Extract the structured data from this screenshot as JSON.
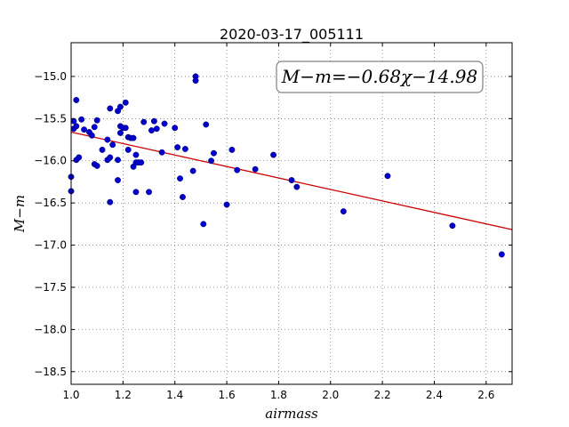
{
  "chart_data": {
    "type": "scatter",
    "title": "2020-03-17_005111",
    "xlabel": "airmass",
    "ylabel": "M−m",
    "xlim": [
      1.0,
      2.7
    ],
    "ylim": [
      -18.65,
      -14.6
    ],
    "y_inverted": true,
    "grid": true,
    "xticks": [
      1.0,
      1.2,
      1.4,
      1.6,
      1.8,
      2.0,
      2.2,
      2.4,
      2.6
    ],
    "xtick_labels": [
      "1.0",
      "1.2",
      "1.4",
      "1.6",
      "1.8",
      "2.0",
      "2.2",
      "2.4",
      "2.6"
    ],
    "yticks": [
      -15.0,
      -15.5,
      -16.0,
      -16.5,
      -17.0,
      -17.5,
      -18.0,
      -18.5
    ],
    "ytick_labels": [
      "−15.0",
      "−15.5",
      "−16.0",
      "−16.5",
      "−17.0",
      "−17.5",
      "−18.0",
      "−18.5"
    ],
    "annotation": "M−m=−0.68χ−14.98",
    "annotation_placement": "top-right",
    "point_color": "#0000cc",
    "fit_color": "#cc0000",
    "fit": {
      "slope": -0.68,
      "intercept": -14.98,
      "x_range": [
        1.0,
        2.7
      ]
    },
    "points": [
      [
        1.0,
        -16.36
      ],
      [
        1.0,
        -16.19
      ],
      [
        1.01,
        -15.53
      ],
      [
        1.01,
        -15.62
      ],
      [
        1.02,
        -15.28
      ],
      [
        1.02,
        -15.59
      ],
      [
        1.02,
        -15.99
      ],
      [
        1.03,
        -15.96
      ],
      [
        1.04,
        -15.51
      ],
      [
        1.05,
        -15.63
      ],
      [
        1.07,
        -15.66
      ],
      [
        1.08,
        -15.7
      ],
      [
        1.09,
        -15.6
      ],
      [
        1.09,
        -16.04
      ],
      [
        1.1,
        -15.52
      ],
      [
        1.1,
        -16.06
      ],
      [
        1.12,
        -15.87
      ],
      [
        1.14,
        -15.75
      ],
      [
        1.14,
        -15.99
      ],
      [
        1.15,
        -15.96
      ],
      [
        1.15,
        -16.49
      ],
      [
        1.15,
        -15.38
      ],
      [
        1.16,
        -15.81
      ],
      [
        1.18,
        -16.23
      ],
      [
        1.18,
        -15.99
      ],
      [
        1.18,
        -15.41
      ],
      [
        1.19,
        -15.36
      ],
      [
        1.19,
        -15.67
      ],
      [
        1.19,
        -15.59
      ],
      [
        1.2,
        -15.61
      ],
      [
        1.21,
        -15.31
      ],
      [
        1.21,
        -15.61
      ],
      [
        1.22,
        -15.72
      ],
      [
        1.22,
        -15.87
      ],
      [
        1.23,
        -15.73
      ],
      [
        1.24,
        -15.73
      ],
      [
        1.24,
        -16.07
      ],
      [
        1.25,
        -15.93
      ],
      [
        1.25,
        -16.02
      ],
      [
        1.25,
        -16.37
      ],
      [
        1.26,
        -16.02
      ],
      [
        1.27,
        -16.02
      ],
      [
        1.28,
        -15.54
      ],
      [
        1.3,
        -16.37
      ],
      [
        1.31,
        -15.64
      ],
      [
        1.32,
        -15.53
      ],
      [
        1.33,
        -15.62
      ],
      [
        1.35,
        -15.9
      ],
      [
        1.36,
        -15.56
      ],
      [
        1.4,
        -15.61
      ],
      [
        1.41,
        -15.84
      ],
      [
        1.42,
        -16.21
      ],
      [
        1.43,
        -16.43
      ],
      [
        1.44,
        -15.86
      ],
      [
        1.47,
        -16.12
      ],
      [
        1.48,
        -15.0
      ],
      [
        1.48,
        -15.05
      ],
      [
        1.51,
        -16.75
      ],
      [
        1.52,
        -15.57
      ],
      [
        1.54,
        -16.0
      ],
      [
        1.55,
        -15.91
      ],
      [
        1.6,
        -16.52
      ],
      [
        1.62,
        -15.87
      ],
      [
        1.64,
        -16.11
      ],
      [
        1.71,
        -16.1
      ],
      [
        1.78,
        -15.93
      ],
      [
        1.85,
        -16.23
      ],
      [
        1.87,
        -16.31
      ],
      [
        2.05,
        -16.6
      ],
      [
        2.22,
        -16.18
      ],
      [
        2.47,
        -16.77
      ],
      [
        2.66,
        -17.11
      ]
    ]
  }
}
